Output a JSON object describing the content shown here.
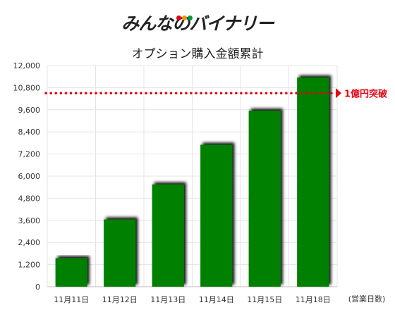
{
  "logo": {
    "text": "みんなのバイナリー",
    "dot_colors": [
      "#e60012",
      "#f39800",
      "#009944"
    ]
  },
  "chart_data": {
    "type": "bar",
    "title": "オプション購入金額累計",
    "categories": [
      "11月11日",
      "11月12日",
      "11月13日",
      "11月14日",
      "11月15日",
      "11月18日"
    ],
    "values": [
      1550,
      3650,
      5550,
      7700,
      9550,
      11350
    ],
    "xlabel": "(営業日数)",
    "ylabel": "",
    "ylim": [
      0,
      12000
    ],
    "yticks": [
      0,
      1200,
      2400,
      3600,
      4800,
      6000,
      7200,
      8400,
      9600,
      10800,
      12000
    ],
    "ytick_labels": [
      "0",
      "1,200",
      "2,400",
      "3,600",
      "4,800",
      "6,000",
      "7,200",
      "8,400",
      "9,600",
      "10,800",
      "12,000"
    ],
    "bar_color": "#008000",
    "grid": true,
    "threshold": {
      "value": 10500,
      "label": "1億円突破",
      "color": "#e60012"
    }
  }
}
